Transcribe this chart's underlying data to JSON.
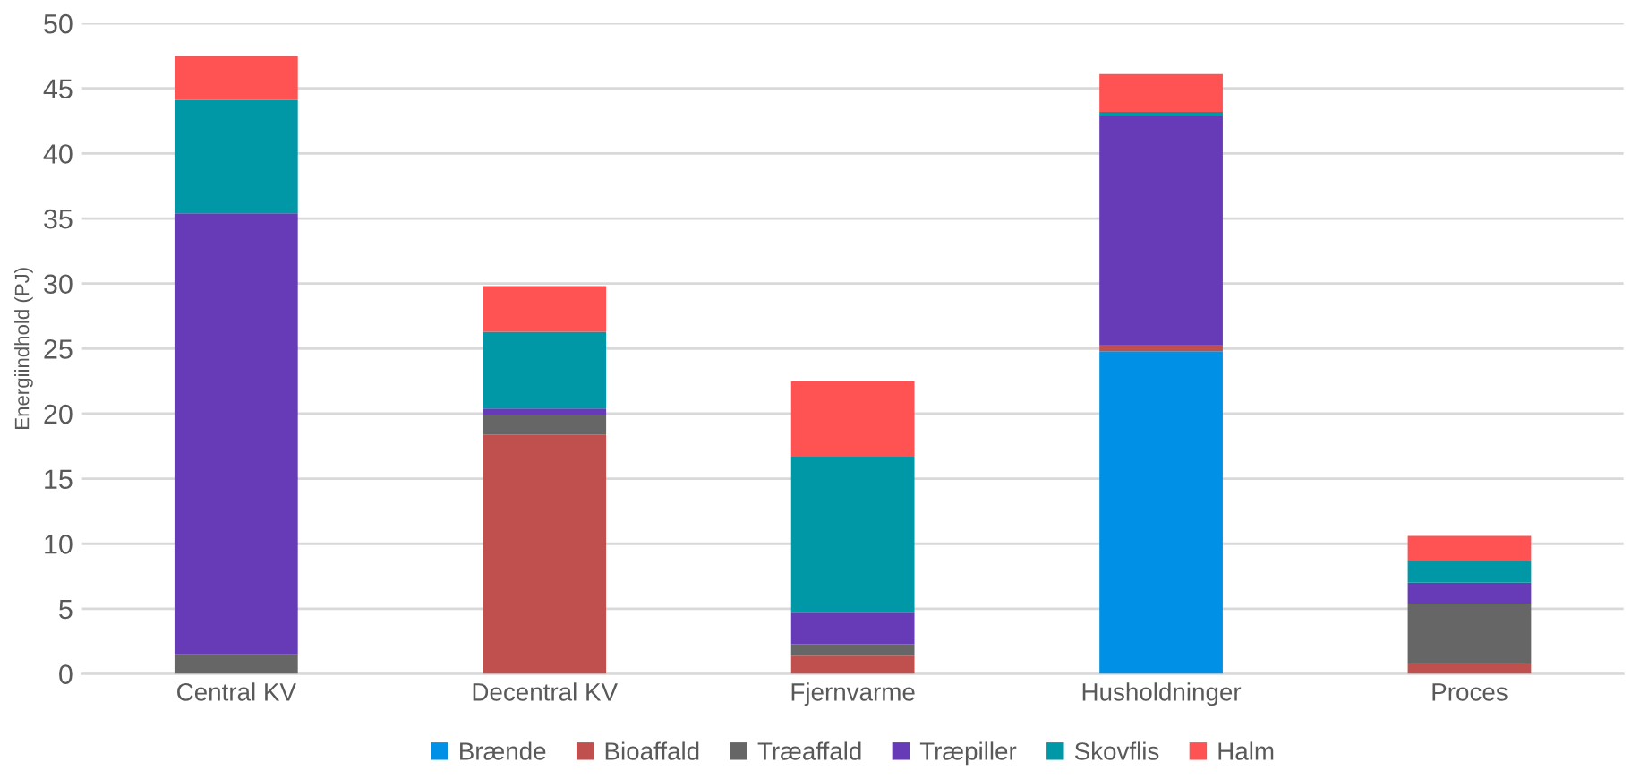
{
  "chart_data": {
    "type": "bar",
    "stacked": true,
    "ylabel": "Energiindhold (PJ)",
    "categories": [
      "Central KV",
      "Decentral KV",
      "Fjernvarme",
      "Husholdninger",
      "Proces"
    ],
    "series": [
      {
        "name": "Brænde",
        "color": "#0091e6",
        "values": [
          0,
          0,
          0,
          24.8,
          0
        ]
      },
      {
        "name": "Bioaffald",
        "color": "#c0504d",
        "values": [
          0,
          18.4,
          1.4,
          0.5,
          0.8
        ]
      },
      {
        "name": "Træaffald",
        "color": "#666666",
        "values": [
          1.5,
          1.5,
          0.9,
          0,
          4.6
        ]
      },
      {
        "name": "Træpiller",
        "color": "#673ab7",
        "values": [
          33.9,
          0.5,
          2.4,
          17.6,
          1.6
        ]
      },
      {
        "name": "Skovflis",
        "color": "#0097a7",
        "values": [
          8.7,
          5.9,
          12.0,
          0.3,
          1.7
        ]
      },
      {
        "name": "Halm",
        "color": "#ff5252",
        "values": [
          3.4,
          3.5,
          5.8,
          2.9,
          1.9
        ]
      }
    ],
    "ylim": [
      0,
      50
    ],
    "yticks": [
      0,
      5,
      10,
      15,
      20,
      25,
      30,
      35,
      40,
      45,
      50
    ],
    "grid": "y",
    "legend": "bottom"
  }
}
